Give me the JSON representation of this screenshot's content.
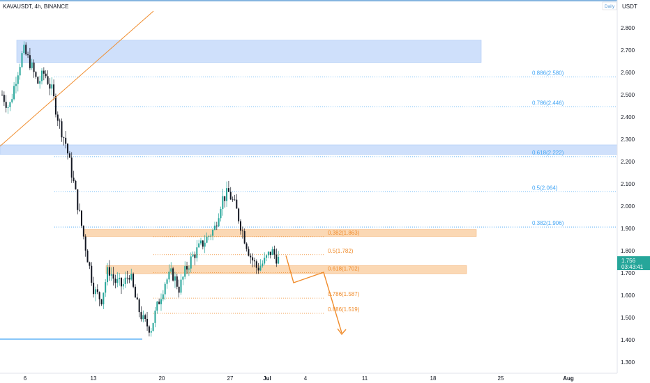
{
  "header": {
    "symbol_text": "KAVAUSDT, 4h, BINANCE",
    "interval_badge": "Daily"
  },
  "axis": {
    "currency": "USDT"
  },
  "colors": {
    "up": "#26a69a",
    "down": "#131722",
    "blue_zone": "#cfe0fb",
    "orange_zone": "#fbd8b4",
    "fib_blue": "#42a5f5",
    "fib_orange": "#f08c2c",
    "price_tag": "#26a69a"
  },
  "current_price": {
    "value": "1.756",
    "countdown": "03:43:41"
  },
  "chart_data": {
    "type": "candlestick",
    "symbol": "KAVAUSDT",
    "timeframe": "4h",
    "exchange": "BINANCE",
    "ylim": [
      1.26,
      2.88
    ],
    "y_ticks": [
      "2.800",
      "2.700",
      "2.600",
      "2.500",
      "2.400",
      "2.300",
      "2.200",
      "2.100",
      "2.000",
      "1.900",
      "1.800",
      "1.700",
      "1.600",
      "1.500",
      "1.400",
      "1.300"
    ],
    "x_ticks": [
      "6",
      "13",
      "20",
      "27",
      "Jul",
      "4",
      "11",
      "18",
      "25",
      "Aug"
    ],
    "fib_blue": [
      {
        "label": "0.886(2.580)",
        "price": 2.58
      },
      {
        "label": "0.786(2.446)",
        "price": 2.446
      },
      {
        "label": "0.618(2.222)",
        "price": 2.222
      },
      {
        "label": "0.5(2.064)",
        "price": 2.064
      },
      {
        "label": "0.382(1.906)",
        "price": 1.906
      }
    ],
    "fib_orange": [
      {
        "label": "0.382(1.863)",
        "price": 1.863
      },
      {
        "label": "0.5(1.782)",
        "price": 1.782
      },
      {
        "label": "0.618(1.702)",
        "price": 1.702
      },
      {
        "label": "0.786(1.587)",
        "price": 1.587
      },
      {
        "label": "0.886(1.519)",
        "price": 1.519
      }
    ],
    "zones": [
      {
        "name": "blue-supply-zone-top",
        "color": "blue",
        "from": 2.645,
        "to": 2.745
      },
      {
        "name": "blue-zone-mid",
        "color": "blue",
        "from": 2.232,
        "to": 2.275
      },
      {
        "name": "orange-zone-upper",
        "color": "orange",
        "from": 1.864,
        "to": 1.895
      },
      {
        "name": "orange-zone-lower",
        "color": "orange",
        "from": 1.697,
        "to": 1.733
      }
    ],
    "price_path": [
      2.5,
      2.44,
      2.58,
      2.7,
      2.64,
      2.55,
      2.6,
      2.52,
      2.38,
      2.28,
      2.12,
      1.95,
      1.78,
      1.62,
      1.58,
      1.72,
      1.66,
      1.64,
      1.7,
      1.56,
      1.48,
      1.45,
      1.56,
      1.66,
      1.7,
      1.63,
      1.72,
      1.78,
      1.82,
      1.86,
      1.9,
      2.03,
      2.06,
      1.99,
      1.88,
      1.78,
      1.72,
      1.75,
      1.8,
      1.76
    ]
  }
}
